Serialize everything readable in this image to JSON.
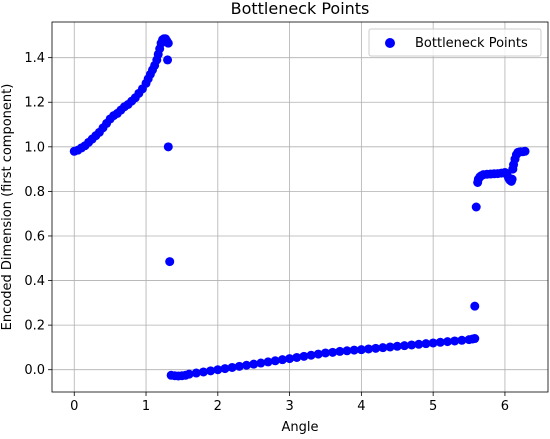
{
  "chart_data": {
    "type": "scatter",
    "title": "Bottleneck Points",
    "xlabel": "Angle",
    "ylabel": "Encoded Dimension (first component)",
    "xlim": [
      -0.31,
      6.6
    ],
    "ylim": [
      -0.1,
      1.56
    ],
    "xticks": [
      0,
      1,
      2,
      3,
      4,
      5,
      6
    ],
    "yticks": [
      0.0,
      0.2,
      0.4,
      0.6,
      0.8,
      1.0,
      1.2,
      1.4
    ],
    "xtick_labels": [
      "0",
      "1",
      "2",
      "3",
      "4",
      "5",
      "6"
    ],
    "ytick_labels": [
      "0.0",
      "0.2",
      "0.4",
      "0.6",
      "0.8",
      "1.0",
      "1.2",
      "1.4"
    ],
    "grid": true,
    "legend_position": "top-right",
    "series": [
      {
        "name": "Bottleneck Points",
        "color": "#0000ff",
        "points": [
          [
            0.0,
            0.98
          ],
          [
            0.05,
            0.985
          ],
          [
            0.1,
            0.995
          ],
          [
            0.15,
            1.005
          ],
          [
            0.2,
            1.02
          ],
          [
            0.25,
            1.035
          ],
          [
            0.3,
            1.05
          ],
          [
            0.35,
            1.065
          ],
          [
            0.4,
            1.085
          ],
          [
            0.45,
            1.105
          ],
          [
            0.5,
            1.125
          ],
          [
            0.55,
            1.14
          ],
          [
            0.6,
            1.15
          ],
          [
            0.65,
            1.165
          ],
          [
            0.7,
            1.18
          ],
          [
            0.75,
            1.19
          ],
          [
            0.8,
            1.205
          ],
          [
            0.85,
            1.22
          ],
          [
            0.9,
            1.24
          ],
          [
            0.95,
            1.26
          ],
          [
            1.0,
            1.285
          ],
          [
            1.03,
            1.305
          ],
          [
            1.06,
            1.325
          ],
          [
            1.09,
            1.345
          ],
          [
            1.12,
            1.365
          ],
          [
            1.15,
            1.39
          ],
          [
            1.17,
            1.415
          ],
          [
            1.19,
            1.44
          ],
          [
            1.21,
            1.465
          ],
          [
            1.23,
            1.48
          ],
          [
            1.25,
            1.485
          ],
          [
            1.27,
            1.485
          ],
          [
            1.29,
            1.475
          ],
          [
            1.31,
            1.465
          ],
          [
            1.3,
            1.39
          ],
          [
            1.31,
            1.0
          ],
          [
            1.33,
            0.485
          ],
          [
            1.35,
            -0.025
          ],
          [
            1.4,
            -0.027
          ],
          [
            1.45,
            -0.028
          ],
          [
            1.5,
            -0.027
          ],
          [
            1.55,
            -0.025
          ],
          [
            1.6,
            -0.02
          ],
          [
            1.7,
            -0.015
          ],
          [
            1.8,
            -0.01
          ],
          [
            1.9,
            -0.005
          ],
          [
            2.0,
            0.0
          ],
          [
            2.1,
            0.005
          ],
          [
            2.2,
            0.01
          ],
          [
            2.3,
            0.015
          ],
          [
            2.4,
            0.02
          ],
          [
            2.5,
            0.025
          ],
          [
            2.6,
            0.03
          ],
          [
            2.7,
            0.035
          ],
          [
            2.8,
            0.04
          ],
          [
            2.9,
            0.045
          ],
          [
            3.0,
            0.05
          ],
          [
            3.1,
            0.055
          ],
          [
            3.2,
            0.06
          ],
          [
            3.3,
            0.065
          ],
          [
            3.4,
            0.07
          ],
          [
            3.5,
            0.075
          ],
          [
            3.6,
            0.078
          ],
          [
            3.7,
            0.082
          ],
          [
            3.8,
            0.085
          ],
          [
            3.9,
            0.088
          ],
          [
            4.0,
            0.09
          ],
          [
            4.1,
            0.093
          ],
          [
            4.2,
            0.096
          ],
          [
            4.3,
            0.099
          ],
          [
            4.4,
            0.102
          ],
          [
            4.5,
            0.105
          ],
          [
            4.6,
            0.108
          ],
          [
            4.7,
            0.111
          ],
          [
            4.8,
            0.114
          ],
          [
            4.9,
            0.117
          ],
          [
            5.0,
            0.12
          ],
          [
            5.1,
            0.123
          ],
          [
            5.2,
            0.126
          ],
          [
            5.3,
            0.129
          ],
          [
            5.4,
            0.132
          ],
          [
            5.5,
            0.135
          ],
          [
            5.55,
            0.138
          ],
          [
            5.58,
            0.14
          ],
          [
            5.58,
            0.285
          ],
          [
            5.6,
            0.73
          ],
          [
            5.62,
            0.84
          ],
          [
            5.63,
            0.855
          ],
          [
            5.65,
            0.865
          ],
          [
            5.67,
            0.87
          ],
          [
            5.7,
            0.875
          ],
          [
            5.75,
            0.877
          ],
          [
            5.8,
            0.878
          ],
          [
            5.85,
            0.879
          ],
          [
            5.9,
            0.88
          ],
          [
            5.95,
            0.882
          ],
          [
            6.0,
            0.885
          ],
          [
            6.03,
            0.875
          ],
          [
            6.05,
            0.86
          ],
          [
            6.07,
            0.85
          ],
          [
            6.09,
            0.845
          ],
          [
            6.1,
            0.855
          ],
          [
            6.11,
            0.9
          ],
          [
            6.12,
            0.92
          ],
          [
            6.14,
            0.945
          ],
          [
            6.16,
            0.965
          ],
          [
            6.18,
            0.975
          ],
          [
            6.2,
            0.977
          ],
          [
            6.22,
            0.978
          ],
          [
            6.25,
            0.978
          ],
          [
            6.28,
            0.98
          ]
        ]
      }
    ]
  }
}
